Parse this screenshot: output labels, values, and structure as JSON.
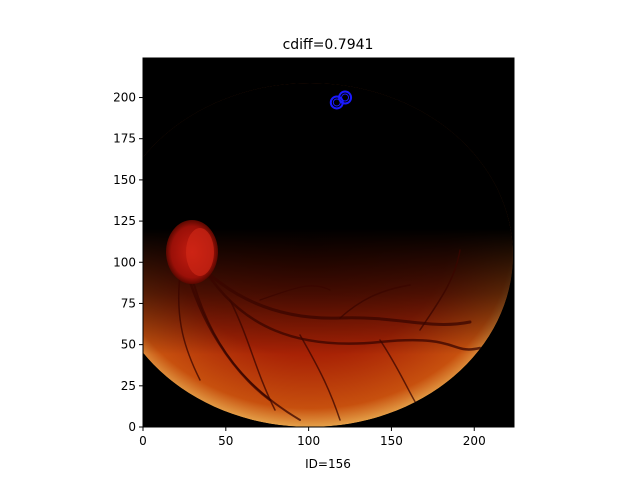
{
  "chart_data": {
    "type": "image",
    "title": "cdiff=0.7941",
    "xlabel": "ID=156",
    "ylabel": "",
    "xlim": [
      0,
      224
    ],
    "ylim": [
      0,
      224
    ],
    "x_ticks": [
      0,
      50,
      100,
      150,
      200
    ],
    "y_ticks": [
      0,
      25,
      50,
      75,
      100,
      125,
      150,
      175,
      200
    ],
    "grid": false,
    "image": "fundus-retina-photo",
    "markers": [
      {
        "x": 117,
        "y": 197,
        "shape": "circle",
        "color": "#1a1aff"
      },
      {
        "x": 122,
        "y": 200,
        "shape": "circle",
        "color": "#1a1aff"
      }
    ]
  }
}
